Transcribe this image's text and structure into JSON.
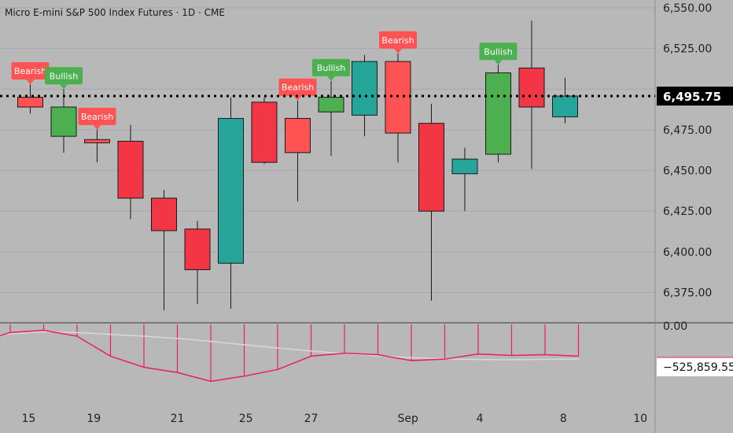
{
  "title": "Micro E-mini S&P 500 Index Futures · 1D · CME",
  "colors": {
    "bull_candle": "#26a69a",
    "bear_candle": "#f23645",
    "bull_signal_candle": "#4caf50",
    "bear_signal_candle": "#ff5252",
    "bull_badge": "#4caf50",
    "bear_badge": "#ff5252",
    "price_line": "#000000",
    "indicator_line": "#e91e63",
    "signal_line": "#d8d8d8"
  },
  "chart_data": [
    {
      "type": "candlestick",
      "title": "Micro E-mini S&P 500 Index Futures · 1D · CME",
      "x_tick_labels": [
        "15",
        "19",
        "21",
        "25",
        "27",
        "Sep",
        "4",
        "8",
        "10"
      ],
      "y_tick_labels": [
        "6,375.00",
        "6,400.00",
        "6,425.00",
        "6,450.00",
        "6,475.00",
        "6,500.00",
        "6,525.00",
        "6,550.00"
      ],
      "ylim": [
        6360,
        6555
      ],
      "grid": true,
      "last_price": 6495.75,
      "last_price_label": "6,495.75",
      "candles": [
        {
          "slot": 0,
          "open": 6495.0,
          "high": 6503.0,
          "low": 6485.0,
          "close": 6489.0,
          "signal": "Bearish"
        },
        {
          "slot": 1,
          "open": 6471.0,
          "high": 6500.0,
          "low": 6461.0,
          "close": 6489.0,
          "signal": "Bullish"
        },
        {
          "slot": 2,
          "open": 6469.0,
          "high": 6475.0,
          "low": 6455.0,
          "close": 6467.0,
          "signal": "Bearish"
        },
        {
          "slot": 3,
          "open": 6468.0,
          "high": 6478.0,
          "low": 6420.0,
          "close": 6433.0,
          "signal": ""
        },
        {
          "slot": 4,
          "open": 6433.0,
          "high": 6438.0,
          "low": 6364.0,
          "close": 6413.0,
          "signal": ""
        },
        {
          "slot": 5,
          "open": 6414.0,
          "high": 6419.0,
          "low": 6368.0,
          "close": 6389.0,
          "signal": ""
        },
        {
          "slot": 6,
          "open": 6393.0,
          "high": 6495.0,
          "low": 6365.0,
          "close": 6482.0,
          "signal": ""
        },
        {
          "slot": 7,
          "open": 6492.0,
          "high": 6495.0,
          "low": 6454.0,
          "close": 6455.0,
          "signal": ""
        },
        {
          "slot": 8,
          "open": 6482.0,
          "high": 6493.0,
          "low": 6431.0,
          "close": 6461.0,
          "signal": "Bearish"
        },
        {
          "slot": 9,
          "open": 6486.0,
          "high": 6505.0,
          "low": 6459.0,
          "close": 6495.0,
          "signal": "Bullish"
        },
        {
          "slot": 10,
          "open": 6484.0,
          "high": 6521.0,
          "low": 6471.0,
          "close": 6517.0,
          "signal": ""
        },
        {
          "slot": 11,
          "open": 6517.0,
          "high": 6522.0,
          "low": 6455.0,
          "close": 6473.0,
          "signal": "Bearish"
        },
        {
          "slot": 12,
          "open": 6479.0,
          "high": 6491.0,
          "low": 6370.0,
          "close": 6425.0,
          "signal": ""
        },
        {
          "slot": 13,
          "open": 6448.0,
          "high": 6464.0,
          "low": 6425.0,
          "close": 6457.0,
          "signal": ""
        },
        {
          "slot": 14,
          "open": 6460.0,
          "high": 6515.0,
          "low": 6455.0,
          "close": 6510.0,
          "signal": "Bullish"
        },
        {
          "slot": 15,
          "open": 6513.0,
          "high": 6542.0,
          "low": 6451.0,
          "close": 6489.0,
          "signal": ""
        },
        {
          "slot": 16,
          "open": 6483.0,
          "high": 6507.0,
          "low": 6479.0,
          "close": 6495.75,
          "signal": ""
        }
      ]
    },
    {
      "type": "histogram-line",
      "y_tick_labels": [
        "0.00"
      ],
      "last_value_label": "−525,859.55",
      "ylim": [
        -1300000,
        0
      ],
      "series": [
        {
          "values": [
            -220000,
            -110000,
            -80000,
            -160000,
            -430000,
            -580000,
            -650000,
            -770000,
            -700000,
            -610000,
            -430000,
            -390000,
            -410000,
            -490000,
            -470000,
            -400000,
            -420000,
            -410000,
            -430000
          ]
        },
        {
          "values": [
            -150000,
            -130000,
            -100000,
            -110000,
            -135000,
            -160000,
            -190000,
            -230000,
            -275000,
            -320000,
            -360000,
            -395000,
            -425000,
            -450000,
            -465000,
            -475000,
            -478000,
            -474000,
            -470000
          ]
        }
      ],
      "slots": [
        -1.4,
        -0.6,
        0.4,
        1.4,
        2.4,
        3.4,
        4.4,
        5.4,
        6.4,
        7.4,
        8.4,
        9.4,
        10.4,
        11.4,
        12.4,
        13.4,
        14.4,
        15.4,
        16.4
      ]
    }
  ]
}
